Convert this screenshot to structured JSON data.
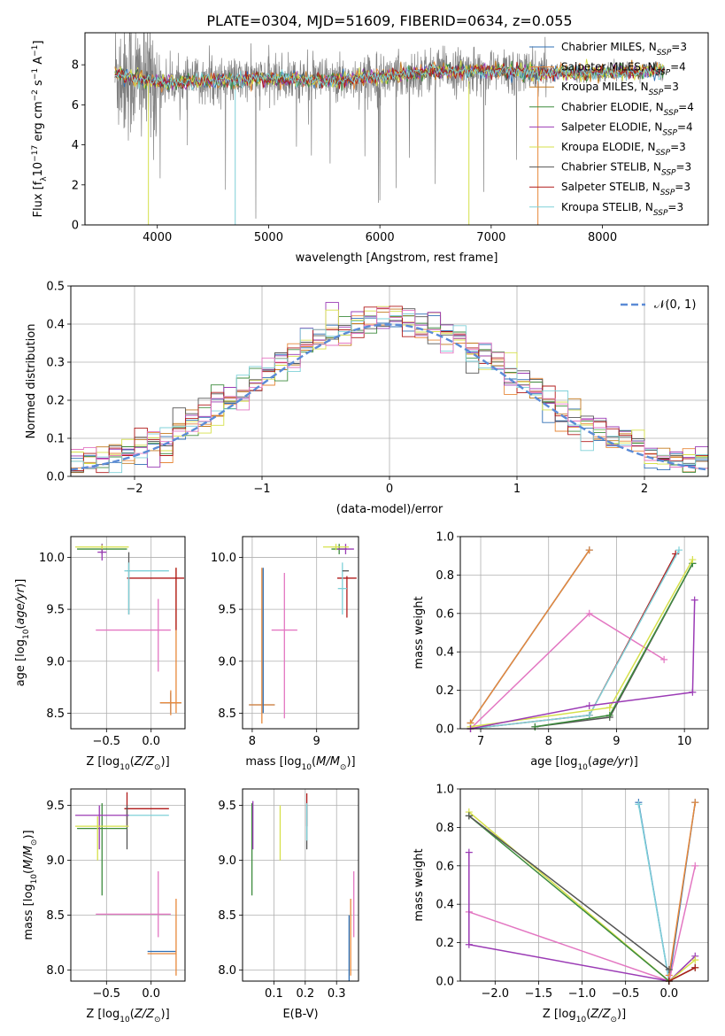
{
  "figure_title": "PLATE=0304, MJD=51609, FIBERID=0634, z=0.055",
  "colors": {
    "grid": "#b0b0b0",
    "spectrum": "#808080",
    "gauss": "#5b8bd6"
  },
  "chart_data": [
    {
      "id": "spectrum",
      "type": "line",
      "title": "PLATE=0304, MJD=51609, FIBERID=0634, z=0.055",
      "xlabel": "wavelength [Angstrom, rest frame]",
      "ylabel": "Flux [f_λ 10^-17 erg cm^-2 s^-1 A^-1]",
      "xlim": [
        3350,
        8950
      ],
      "ylim": [
        0,
        9.6
      ],
      "xticks": [
        4000,
        5000,
        6000,
        7000,
        8000
      ],
      "yticks": [
        0,
        2,
        4,
        6,
        8
      ],
      "grid": false,
      "legend_position": "right",
      "data_range": [
        3620,
        8560
      ],
      "baseline": [
        [
          3620,
          7.6
        ],
        [
          3800,
          7.3
        ],
        [
          4000,
          7.1
        ],
        [
          4500,
          7.2
        ],
        [
          5000,
          7.3
        ],
        [
          5500,
          7.2
        ],
        [
          6000,
          7.4
        ],
        [
          6500,
          7.7
        ],
        [
          7000,
          7.7
        ],
        [
          7400,
          7.6
        ],
        [
          8000,
          7.6
        ],
        [
          8560,
          7.7
        ]
      ],
      "series": [
        {
          "name": "Chabrier MILES, N_SSP=3",
          "color": "#2e6fb5"
        },
        {
          "name": "Salpeter MILES, N_SSP=4",
          "color": "#e7883a"
        },
        {
          "name": "Kroupa MILES, N_SSP=3",
          "color": "#c47a1f"
        },
        {
          "name": "Chabrier ELODIE, N_SSP=4",
          "color": "#3d8b3d"
        },
        {
          "name": "Salpeter ELODIE, N_SSP=4",
          "color": "#9b3bb5"
        },
        {
          "name": "Kroupa ELODIE, N_SSP=3",
          "color": "#d6e04a"
        },
        {
          "name": "Chabrier STELIB, N_SSP=3",
          "color": "#555555"
        },
        {
          "name": "Salpeter STELIB, N_SSP=3",
          "color": "#b01a1a"
        },
        {
          "name": "Kroupa STELIB, N_SSP=3",
          "color": "#7fd0d8"
        }
      ]
    },
    {
      "id": "histogram",
      "type": "bar",
      "xlabel": "(data-model)/error",
      "ylabel": "Normed distribution",
      "xlim": [
        -2.5,
        2.5
      ],
      "ylim": [
        0,
        0.5
      ],
      "xticks": [
        -2,
        -1,
        0,
        1,
        2
      ],
      "yticks": [
        0.0,
        0.1,
        0.2,
        0.3,
        0.4,
        0.5
      ],
      "grid": true,
      "bin_width": 0.1,
      "legend_position": "top-right",
      "legend": [
        {
          "name": "𝒩(0, 1)",
          "color": "#5b8bd6",
          "style": "dashed"
        }
      ],
      "gaussian": {
        "mean": 0,
        "sigma": 1
      }
    },
    {
      "id": "age-vs-Z",
      "type": "scatter",
      "xlabel": "Z [log10(Z/Z⊙)]",
      "ylabel": "age [log10(age/yr)]",
      "xlim": [
        -0.9,
        0.38
      ],
      "ylim": [
        8.35,
        10.2
      ],
      "xticks": [
        -0.5,
        0.0
      ],
      "yticks": [
        8.5,
        9.0,
        9.5,
        10.0
      ],
      "grid": true,
      "errorbars": [
        {
          "color": "#2e6fb5",
          "x": 0.22,
          "xerr": 0.12,
          "y": 8.6,
          "yerr": 0.1
        },
        {
          "color": "#e7883a",
          "x": 0.22,
          "xerr": 0.12,
          "y": 8.6,
          "yerr": 0.12
        },
        {
          "color": "#e7883a",
          "x": 0.28,
          "xerr": 0.0,
          "y": 9.2,
          "yerr": 0.7
        },
        {
          "color": "#e377c2",
          "x": -0.2,
          "xerr": 0.42,
          "y": 9.3,
          "yerr": 0.0
        },
        {
          "color": "#e377c2",
          "x": 0.08,
          "xerr": 0.0,
          "y": 9.25,
          "yerr": 0.35
        },
        {
          "color": "#b01a1a",
          "x": 0.05,
          "xerr": 0.32,
          "y": 9.8,
          "yerr": 0.0
        },
        {
          "color": "#b01a1a",
          "x": 0.28,
          "xerr": 0.0,
          "y": 9.6,
          "yerr": 0.3
        },
        {
          "color": "#7fd0d8",
          "x": -0.05,
          "xerr": 0.25,
          "y": 9.87,
          "yerr": 0.0
        },
        {
          "color": "#555555",
          "x": -0.25,
          "xerr": 0.0,
          "y": 9.75,
          "yerr": 0.3
        },
        {
          "color": "#7fd0d8",
          "x": -0.25,
          "xerr": 0.0,
          "y": 9.7,
          "yerr": 0.25
        },
        {
          "color": "#3d8b3d",
          "x": -0.55,
          "xerr": 0.28,
          "y": 10.08,
          "yerr": 0.05
        },
        {
          "color": "#9b3bb5",
          "x": -0.55,
          "xerr": 0.05,
          "y": 10.05,
          "yerr": 0.08
        },
        {
          "color": "#d6e04a",
          "x": -0.55,
          "xerr": 0.3,
          "y": 10.1,
          "yerr": 0.02
        }
      ]
    },
    {
      "id": "age-vs-mass",
      "type": "scatter",
      "xlabel": "mass [log10(M/M⊙)]",
      "ylabel": "",
      "xlim": [
        7.85,
        9.65
      ],
      "ylim": [
        8.35,
        10.2
      ],
      "xticks": [
        8,
        9
      ],
      "yticks": [
        8.5,
        9.0,
        9.5,
        10.0
      ],
      "grid": true,
      "errorbars": [
        {
          "color": "#2e6fb5",
          "x": 8.15,
          "xerr": 0.2,
          "y": 8.58,
          "yerr": 0.0
        },
        {
          "color": "#e7883a",
          "x": 8.15,
          "xerr": 0.2,
          "y": 8.58,
          "yerr": 0.0
        },
        {
          "color": "#2e6fb5",
          "x": 8.17,
          "xerr": 0.0,
          "y": 9.2,
          "yerr": 0.7
        },
        {
          "color": "#e7883a",
          "x": 8.15,
          "xerr": 0.0,
          "y": 9.15,
          "yerr": 0.75
        },
        {
          "color": "#e377c2",
          "x": 8.5,
          "xerr": 0.0,
          "y": 9.15,
          "yerr": 0.7
        },
        {
          "color": "#e377c2",
          "x": 8.5,
          "xerr": 0.2,
          "y": 9.3,
          "yerr": 0.0
        },
        {
          "color": "#b01a1a",
          "x": 9.47,
          "xerr": 0.15,
          "y": 9.8,
          "yerr": 0.0
        },
        {
          "color": "#b01a1a",
          "x": 9.47,
          "xerr": 0.0,
          "y": 9.62,
          "yerr": 0.2
        },
        {
          "color": "#7fd0d8",
          "x": 9.4,
          "xerr": 0.07,
          "y": 9.7,
          "yerr": 0.25
        },
        {
          "color": "#555555",
          "x": 9.45,
          "xerr": 0.05,
          "y": 9.87,
          "yerr": 0.0
        },
        {
          "color": "#3d8b3d",
          "x": 9.35,
          "xerr": 0.12,
          "y": 10.08,
          "yerr": 0.05
        },
        {
          "color": "#9b3bb5",
          "x": 9.45,
          "xerr": 0.13,
          "y": 10.08,
          "yerr": 0.05
        },
        {
          "color": "#d6e04a",
          "x": 9.3,
          "xerr": 0.2,
          "y": 10.1,
          "yerr": 0.03
        }
      ]
    },
    {
      "id": "mass-weight-vs-age",
      "type": "line",
      "xlabel": "age [log10(age/yr)]",
      "ylabel": "mass weight",
      "xlim": [
        6.7,
        10.35
      ],
      "ylim": [
        0,
        1.0
      ],
      "xticks": [
        7,
        8,
        9,
        10
      ],
      "yticks": [
        0.0,
        0.2,
        0.4,
        0.6,
        0.8,
        1.0
      ],
      "grid": true,
      "series": [
        {
          "color": "#2e6fb5",
          "x": [
            6.85,
            8.6
          ],
          "y": [
            0.03,
            0.93
          ]
        },
        {
          "color": "#e7883a",
          "x": [
            6.85,
            8.6
          ],
          "y": [
            0.03,
            0.93
          ]
        },
        {
          "color": "#e377c2",
          "x": [
            6.85,
            8.6,
            9.7
          ],
          "y": [
            0.0,
            0.6,
            0.36
          ]
        },
        {
          "color": "#b01a1a",
          "x": [
            6.85,
            8.6,
            9.87
          ],
          "y": [
            0.0,
            0.07,
            0.91
          ]
        },
        {
          "color": "#7fd0d8",
          "x": [
            6.85,
            8.6,
            9.92
          ],
          "y": [
            0.0,
            0.07,
            0.93
          ]
        },
        {
          "color": "#555555",
          "x": [
            7.8,
            8.9,
            10.12
          ],
          "y": [
            0.01,
            0.06,
            0.86
          ]
        },
        {
          "color": "#3d8b3d",
          "x": [
            7.8,
            8.9,
            10.12
          ],
          "y": [
            0.01,
            0.07,
            0.86
          ]
        },
        {
          "color": "#d6e04a",
          "x": [
            6.85,
            8.9,
            10.12
          ],
          "y": [
            0.01,
            0.11,
            0.88
          ]
        },
        {
          "color": "#9b3bb5",
          "x": [
            6.85,
            8.6,
            10.12,
            10.15
          ],
          "y": [
            0.0,
            0.12,
            0.19,
            0.67
          ]
        }
      ]
    },
    {
      "id": "mass-vs-Z",
      "type": "scatter",
      "xlabel": "Z [log10(Z/Z⊙)]",
      "ylabel": "mass [log10(M/M⊙)]",
      "xlim": [
        -0.9,
        0.38
      ],
      "ylim": [
        7.9,
        9.65
      ],
      "xticks": [
        -0.5,
        0.0
      ],
      "yticks": [
        8.0,
        8.5,
        9.0,
        9.5
      ],
      "grid": true,
      "errorbars": [
        {
          "color": "#2e6fb5",
          "x": 0.12,
          "xerr": 0.16,
          "y": 8.17,
          "yerr": 0.0
        },
        {
          "color": "#e7883a",
          "x": 0.12,
          "xerr": 0.16,
          "y": 8.15,
          "yerr": 0.0
        },
        {
          "color": "#e7883a",
          "x": 0.28,
          "xerr": 0.0,
          "y": 8.3,
          "yerr": 0.35
        },
        {
          "color": "#e377c2",
          "x": -0.2,
          "xerr": 0.42,
          "y": 8.51,
          "yerr": 0.0
        },
        {
          "color": "#e377c2",
          "x": 0.08,
          "xerr": 0.0,
          "y": 8.6,
          "yerr": 0.3
        },
        {
          "color": "#b01a1a",
          "x": -0.05,
          "xerr": 0.25,
          "y": 9.47,
          "yerr": 0.0
        },
        {
          "color": "#b01a1a",
          "x": -0.27,
          "xerr": 0.0,
          "y": 9.47,
          "yerr": 0.15
        },
        {
          "color": "#7fd0d8",
          "x": -0.05,
          "xerr": 0.25,
          "y": 9.41,
          "yerr": 0.0
        },
        {
          "color": "#555555",
          "x": -0.27,
          "xerr": 0.0,
          "y": 9.3,
          "yerr": 0.2
        },
        {
          "color": "#3d8b3d",
          "x": -0.55,
          "xerr": 0.28,
          "y": 9.29,
          "yerr": 0.0
        },
        {
          "color": "#3d8b3d",
          "x": -0.55,
          "xerr": 0.0,
          "y": 9.1,
          "yerr": 0.42
        },
        {
          "color": "#9b3bb5",
          "x": -0.55,
          "xerr": 0.3,
          "y": 9.41,
          "yerr": 0.0
        },
        {
          "color": "#9b3bb5",
          "x": -0.58,
          "xerr": 0.0,
          "y": 9.3,
          "yerr": 0.2
        },
        {
          "color": "#d6e04a",
          "x": -0.55,
          "xerr": 0.3,
          "y": 9.31,
          "yerr": 0.0
        },
        {
          "color": "#d6e04a",
          "x": -0.6,
          "xerr": 0.0,
          "y": 9.2,
          "yerr": 0.2
        }
      ]
    },
    {
      "id": "mass-vs-ebv",
      "type": "scatter",
      "xlabel": "E(B-V)",
      "ylabel": "",
      "xlim": [
        0.0,
        0.37
      ],
      "ylim": [
        7.9,
        9.65
      ],
      "xticks": [
        0.1,
        0.2,
        0.3
      ],
      "yticks": [
        8.0,
        8.5,
        9.0,
        9.5
      ],
      "grid": true,
      "errorbars": [
        {
          "color": "#3d8b3d",
          "x": 0.03,
          "xerr": 0.0,
          "y": 9.1,
          "yerr": 0.42
        },
        {
          "color": "#9b3bb5",
          "x": 0.033,
          "xerr": 0.0,
          "y": 9.32,
          "yerr": 0.22
        },
        {
          "color": "#d6e04a",
          "x": 0.12,
          "xerr": 0.0,
          "y": 9.25,
          "yerr": 0.25
        },
        {
          "color": "#b01a1a",
          "x": 0.205,
          "xerr": 0.0,
          "y": 9.46,
          "yerr": 0.15
        },
        {
          "color": "#555555",
          "x": 0.205,
          "xerr": 0.0,
          "y": 9.3,
          "yerr": 0.2
        },
        {
          "color": "#7fd0d8",
          "x": 0.205,
          "xerr": 0.0,
          "y": 9.35,
          "yerr": 0.17
        },
        {
          "color": "#e7883a",
          "x": 0.345,
          "xerr": 0.0,
          "y": 8.3,
          "yerr": 0.35
        },
        {
          "color": "#2e6fb5",
          "x": 0.34,
          "xerr": 0.0,
          "y": 8.2,
          "yerr": 0.3
        },
        {
          "color": "#e377c2",
          "x": 0.355,
          "xerr": 0.0,
          "y": 8.6,
          "yerr": 0.3
        }
      ]
    },
    {
      "id": "mass-weight-vs-Z",
      "type": "line",
      "xlabel": "Z [log10(Z/Z⊙)]",
      "ylabel": "mass weight",
      "xlim": [
        -2.4,
        0.45
      ],
      "ylim": [
        0,
        1.0
      ],
      "xticks": [
        -2.0,
        -1.5,
        -1.0,
        -0.5,
        0.0
      ],
      "yticks": [
        0.0,
        0.2,
        0.4,
        0.6,
        0.8,
        1.0
      ],
      "grid": true,
      "series": [
        {
          "color": "#2e6fb5",
          "x": [
            -0.35,
            0.0,
            0.3
          ],
          "y": [
            0.93,
            0.0,
            0.93
          ]
        },
        {
          "color": "#7fd0d8",
          "x": [
            -0.35,
            0.0
          ],
          "y": [
            0.92,
            0.0
          ]
        },
        {
          "color": "#e7883a",
          "x": [
            0.0,
            0.3
          ],
          "y": [
            0.03,
            0.93
          ]
        },
        {
          "color": "#e377c2",
          "x": [
            -2.3,
            0.0,
            0.3
          ],
          "y": [
            0.36,
            0.0,
            0.6
          ]
        },
        {
          "color": "#9b3bb5",
          "x": [
            -2.3,
            -2.3,
            0.0,
            0.3
          ],
          "y": [
            0.67,
            0.19,
            0.0,
            0.13
          ]
        },
        {
          "color": "#d6e04a",
          "x": [
            -2.3,
            0.0,
            0.3
          ],
          "y": [
            0.88,
            0.0,
            0.11
          ]
        },
        {
          "color": "#3d8b3d",
          "x": [
            -2.3,
            0.0,
            0.3
          ],
          "y": [
            0.86,
            0.0,
            0.07
          ]
        },
        {
          "color": "#555555",
          "x": [
            -2.3,
            0.0
          ],
          "y": [
            0.86,
            0.06
          ]
        },
        {
          "color": "#b01a1a",
          "x": [
            0.0,
            0.3
          ],
          "y": [
            0.0,
            0.07
          ]
        }
      ]
    }
  ]
}
